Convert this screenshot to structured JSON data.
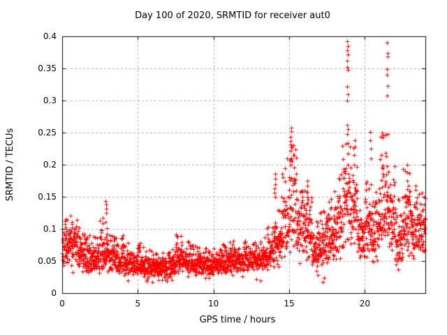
{
  "chart_data": {
    "type": "scatter",
    "title": "Day 100 of 2020, SRMTID for receiver aut0",
    "xlabel": "GPS time / hours",
    "ylabel": "SRMTID / TECUs",
    "xlim": [
      0,
      24
    ],
    "ylim": [
      0,
      0.4
    ],
    "xticks": [
      0,
      5,
      10,
      15,
      20
    ],
    "xtick_labels": [
      "0",
      "5",
      "10",
      "15",
      "20"
    ],
    "yticks": [
      0,
      0.05,
      0.1,
      0.15,
      0.2,
      0.25,
      0.3,
      0.35,
      0.4
    ],
    "ytick_labels": [
      "0",
      "0.05",
      "0.1",
      "0.15",
      "0.2",
      "0.25",
      "0.3",
      "0.35",
      "0.4"
    ],
    "grid": {
      "on": true,
      "color": "#b0b0b0",
      "dash": [
        3,
        3
      ]
    },
    "border_color": "#000000",
    "background": "#ffffff",
    "marker": {
      "glyph": "plus",
      "color": "#ff0000",
      "size": 7
    },
    "series_name": "SRMTID",
    "bin_width": 0.5,
    "seed": 7,
    "density_bins": [
      [
        0.0,
        0.045,
        0.115,
        54
      ],
      [
        0.5,
        0.04,
        0.13,
        54
      ],
      [
        1.0,
        0.035,
        0.105,
        54
      ],
      [
        1.5,
        0.03,
        0.095,
        54
      ],
      [
        2.0,
        0.03,
        0.09,
        54
      ],
      [
        2.5,
        0.035,
        0.12,
        54
      ],
      [
        3.0,
        0.033,
        0.11,
        54
      ],
      [
        3.5,
        0.03,
        0.09,
        54
      ],
      [
        4.0,
        0.028,
        0.08,
        54
      ],
      [
        4.5,
        0.027,
        0.072,
        54
      ],
      [
        5.0,
        0.026,
        0.078,
        54
      ],
      [
        5.5,
        0.025,
        0.068,
        54
      ],
      [
        6.0,
        0.024,
        0.062,
        54
      ],
      [
        6.5,
        0.025,
        0.065,
        54
      ],
      [
        7.0,
        0.028,
        0.072,
        54
      ],
      [
        7.5,
        0.03,
        0.092,
        54
      ],
      [
        8.0,
        0.03,
        0.082,
        54
      ],
      [
        8.5,
        0.03,
        0.076,
        54
      ],
      [
        9.0,
        0.029,
        0.072,
        54
      ],
      [
        9.5,
        0.028,
        0.066,
        54
      ],
      [
        10.0,
        0.03,
        0.07,
        54
      ],
      [
        10.5,
        0.032,
        0.076,
        54
      ],
      [
        11.0,
        0.034,
        0.082,
        54
      ],
      [
        11.5,
        0.034,
        0.076,
        54
      ],
      [
        12.0,
        0.035,
        0.082,
        54
      ],
      [
        12.5,
        0.035,
        0.08,
        54
      ],
      [
        13.0,
        0.038,
        0.088,
        54
      ],
      [
        13.5,
        0.04,
        0.105,
        54
      ],
      [
        14.0,
        0.048,
        0.13,
        54
      ],
      [
        14.5,
        0.055,
        0.215,
        54
      ],
      [
        15.0,
        0.065,
        0.24,
        54
      ],
      [
        15.5,
        0.052,
        0.16,
        54
      ],
      [
        16.0,
        0.05,
        0.165,
        54
      ],
      [
        16.5,
        0.035,
        0.12,
        54
      ],
      [
        17.0,
        0.042,
        0.13,
        54
      ],
      [
        17.5,
        0.05,
        0.15,
        54
      ],
      [
        18.0,
        0.06,
        0.185,
        54
      ],
      [
        18.5,
        0.08,
        0.24,
        54
      ],
      [
        19.0,
        0.075,
        0.23,
        54
      ],
      [
        19.5,
        0.055,
        0.14,
        54
      ],
      [
        20.0,
        0.06,
        0.175,
        54
      ],
      [
        20.5,
        0.055,
        0.165,
        54
      ],
      [
        21.0,
        0.08,
        0.25,
        54
      ],
      [
        21.5,
        0.06,
        0.21,
        54
      ],
      [
        22.0,
        0.045,
        0.155,
        54
      ],
      [
        22.5,
        0.065,
        0.195,
        54
      ],
      [
        23.0,
        0.06,
        0.175,
        54
      ],
      [
        23.5,
        0.05,
        0.16,
        52
      ]
    ],
    "peak_columns": [
      [
        2.9,
        [
          0.125,
          0.131,
          0.138,
          0.143
        ]
      ],
      [
        14.05,
        [
          0.15,
          0.157,
          0.163,
          0.17,
          0.178,
          0.186
        ]
      ],
      [
        15.12,
        [
          0.2,
          0.21,
          0.222,
          0.232,
          0.243,
          0.252,
          0.258
        ]
      ],
      [
        16.22,
        [
          0.14,
          0.15,
          0.158,
          0.167,
          0.175
        ]
      ],
      [
        18.86,
        [
          0.248,
          0.255,
          0.262,
          0.3,
          0.31,
          0.322,
          0.348,
          0.352,
          0.362,
          0.372,
          0.378,
          0.385,
          0.392
        ]
      ],
      [
        19.3,
        [
          0.2,
          0.215,
          0.228,
          0.238
        ]
      ],
      [
        20.35,
        [
          0.21,
          0.225,
          0.238,
          0.251
        ]
      ],
      [
        21.1,
        [
          0.25
        ]
      ],
      [
        21.46,
        [
          0.248,
          0.308,
          0.323,
          0.34,
          0.349,
          0.368,
          0.374,
          0.39
        ]
      ],
      [
        22.8,
        [
          0.15,
          0.162,
          0.175,
          0.188,
          0.2
        ]
      ]
    ],
    "outlier_points": [
      [
        4.35,
        0.02
      ],
      [
        6.6,
        0.021
      ],
      [
        12.85,
        0.022
      ],
      [
        13.1,
        0.02
      ],
      [
        16.9,
        0.028
      ],
      [
        17.2,
        0.017
      ],
      [
        17.3,
        0.024
      ]
    ]
  }
}
